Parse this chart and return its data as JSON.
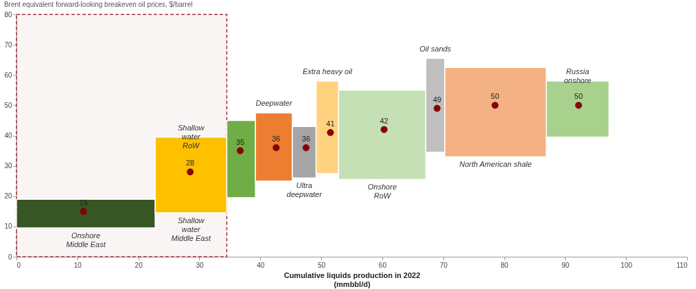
{
  "chart_data": {
    "type": "histogram",
    "title": "Brent equivalent forward-looking breakeven oil prices, $/barrel",
    "xlabel": "Cumulative liquids production in 2022\n(mmbbl/d)",
    "xlim": [
      0,
      110
    ],
    "xticks": [
      0,
      10,
      20,
      30,
      40,
      50,
      60,
      70,
      80,
      90,
      100,
      110
    ],
    "ylim": [
      0,
      80
    ],
    "yticks": [
      0,
      10,
      20,
      30,
      40,
      50,
      60,
      70,
      80
    ],
    "grid": false,
    "series": [
      {
        "bins": [
          0,
          22.75,
          34.5,
          39.2,
          45.25,
          49.15,
          52.85,
          67.15,
          70.25,
          86.9,
          97.2
        ],
        "base": [
          9.5,
          14.5,
          19.5,
          25,
          26,
          27.5,
          25.5,
          34.5,
          33,
          39.5
        ],
        "values": [
          9.5,
          25,
          25.5,
          22.5,
          17,
          30.5,
          29.5,
          31,
          29.5,
          18.5
        ],
        "colors": [
          "#375623",
          "#ffc000",
          "#70ad47",
          "#ed7d31",
          "#a5a5a5",
          "#ffd27f",
          "#c5e0b4",
          "#bfbfbf",
          "#f4b183",
          "#a9d18e"
        ]
      },
      {
        "type": "scatter",
        "x": [
          11,
          28.5,
          36.7,
          42.6,
          47.5,
          51.5,
          60.3,
          69,
          78.5,
          92.2
        ],
        "values": [
          15,
          28,
          35,
          36,
          36,
          41,
          42,
          49,
          50,
          50
        ],
        "color": "#8b0000",
        "marker": "circle",
        "value_labels": [
          "15",
          "28",
          "35",
          "36",
          "36",
          "41",
          "42",
          "49",
          "50",
          "50"
        ]
      }
    ],
    "bands": [
      {
        "axis": "x",
        "from": 0,
        "to": 34.5,
        "color": "#a0323c"
      }
    ],
    "annotations": [
      "Onshore\nMiddle East",
      "Shallow\nwater\nRoW",
      "Shallow\nwater\nMiddle East",
      "Deepwater",
      "Ultra\ndeepwater",
      "Extra heavy oil",
      "Onshore\nRoW",
      "Oil sands",
      "North American shale",
      "Russia\nonshore"
    ]
  }
}
